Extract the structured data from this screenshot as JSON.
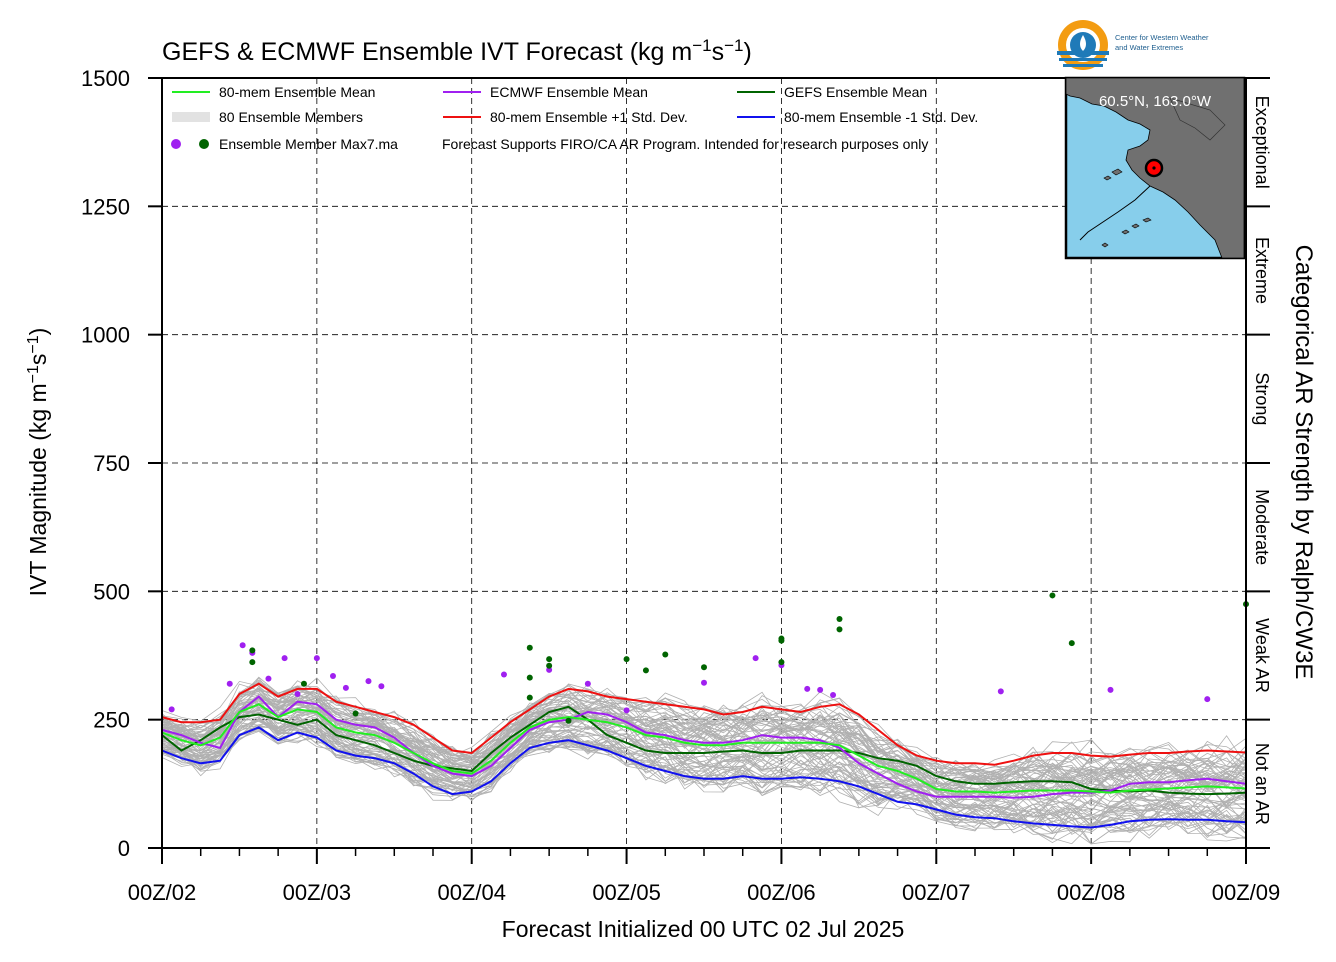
{
  "chart_data": {
    "type": "line",
    "title": "GEFS & ECMWF Ensemble IVT Forecast (kg m⁻¹s⁻¹)",
    "xlabel": "Forecast Initialized 00 UTC 02 Jul 2025",
    "ylabel": "IVT Magnitude (kg m⁻¹s⁻¹)",
    "right_label": "Categorical AR Strength by Ralph/CW3E",
    "ylim": [
      0,
      1500
    ],
    "xlim": [
      0,
      168
    ],
    "x_unit": "forecast hour",
    "x_ticks": [
      {
        "x": 0,
        "label": "00Z/02"
      },
      {
        "x": 24,
        "label": "00Z/03"
      },
      {
        "x": 48,
        "label": "00Z/04"
      },
      {
        "x": 72,
        "label": "00Z/05"
      },
      {
        "x": 96,
        "label": "00Z/06"
      },
      {
        "x": 120,
        "label": "00Z/07"
      },
      {
        "x": 144,
        "label": "00Z/08"
      },
      {
        "x": 168,
        "label": "00Z/09"
      }
    ],
    "y_ticks": [
      0,
      250,
      500,
      750,
      1000,
      1250,
      1500
    ],
    "grid": true,
    "categories": [
      {
        "label": "Not an AR",
        "range": [
          0,
          250
        ]
      },
      {
        "label": "Weak AR",
        "range": [
          250,
          500
        ]
      },
      {
        "label": "Moderate",
        "range": [
          500,
          750
        ]
      },
      {
        "label": "Strong",
        "range": [
          750,
          1000
        ]
      },
      {
        "label": "Extreme",
        "range": [
          1000,
          1250
        ]
      },
      {
        "label": "Exceptional",
        "range": [
          1250,
          1500
        ]
      }
    ],
    "legend": {
      "placement": "top-left",
      "items": [
        {
          "label": "80-mem Ensemble Mean",
          "color": "#22ee22"
        },
        {
          "label": "ECMWF Ensemble Mean",
          "color": "#a020f0"
        },
        {
          "label": "GEFS Ensemble Mean",
          "color": "#006400"
        },
        {
          "label": "80 Ensemble Members",
          "color": "#b0b0b0"
        },
        {
          "label": "80-mem Ensemble +1 Std. Dev.",
          "color": "#ee1111"
        },
        {
          "label": "80-mem Ensemble -1 Std. Dev.",
          "color": "#1111ee"
        },
        {
          "label": "Ensemble Member Max7.ma",
          "color": "#a020f0"
        }
      ],
      "note": "Forecast Supports FIRO/CA AR Program. Intended for research purposes only"
    },
    "x": [
      0,
      3,
      6,
      9,
      12,
      15,
      18,
      21,
      24,
      27,
      30,
      33,
      36,
      39,
      42,
      45,
      48,
      51,
      54,
      57,
      60,
      63,
      66,
      69,
      72,
      75,
      78,
      81,
      84,
      87,
      90,
      93,
      96,
      99,
      102,
      105,
      108,
      111,
      114,
      117,
      120,
      123,
      126,
      129,
      132,
      135,
      138,
      141,
      144,
      147,
      150,
      153,
      156,
      159,
      162,
      165,
      168
    ],
    "series": [
      {
        "name": "80-mem Ensemble Mean",
        "color": "#22ee22",
        "values": [
          225,
          210,
          200,
          215,
          265,
          280,
          255,
          270,
          265,
          235,
          225,
          220,
          205,
          185,
          165,
          150,
          145,
          170,
          205,
          235,
          250,
          255,
          250,
          245,
          235,
          220,
          215,
          205,
          200,
          200,
          205,
          205,
          205,
          205,
          205,
          200,
          180,
          160,
          150,
          135,
          115,
          110,
          110,
          108,
          110,
          112,
          112,
          112,
          110,
          108,
          112,
          114,
          116,
          118,
          120,
          118,
          116
        ]
      },
      {
        "name": "ECMWF Ensemble Mean",
        "color": "#a020f0",
        "values": [
          230,
          220,
          205,
          195,
          265,
          295,
          255,
          285,
          280,
          250,
          240,
          235,
          215,
          185,
          160,
          145,
          140,
          160,
          195,
          230,
          245,
          250,
          265,
          260,
          245,
          225,
          220,
          210,
          205,
          205,
          210,
          220,
          215,
          215,
          210,
          195,
          165,
          145,
          125,
          110,
          100,
          100,
          100,
          100,
          98,
          100,
          105,
          108,
          108,
          112,
          125,
          128,
          128,
          132,
          135,
          130,
          125
        ]
      },
      {
        "name": "GEFS Ensemble Mean",
        "color": "#006400",
        "values": [
          220,
          190,
          210,
          235,
          255,
          260,
          250,
          240,
          250,
          220,
          210,
          200,
          185,
          170,
          160,
          155,
          150,
          185,
          215,
          240,
          265,
          275,
          250,
          220,
          205,
          190,
          185,
          185,
          185,
          188,
          190,
          185,
          185,
          190,
          190,
          190,
          185,
          175,
          170,
          160,
          140,
          130,
          125,
          125,
          128,
          130,
          130,
          128,
          115,
          112,
          110,
          112,
          108,
          106,
          105,
          106,
          108
        ]
      },
      {
        "name": "80-mem Ensemble +1 Std. Dev.",
        "color": "#ee1111",
        "values": [
          255,
          245,
          245,
          250,
          300,
          320,
          295,
          310,
          310,
          285,
          275,
          265,
          255,
          240,
          215,
          190,
          185,
          215,
          245,
          270,
          295,
          310,
          305,
          295,
          290,
          285,
          280,
          275,
          270,
          260,
          265,
          275,
          270,
          265,
          275,
          280,
          260,
          230,
          200,
          180,
          170,
          165,
          165,
          162,
          170,
          180,
          185,
          185,
          180,
          178,
          182,
          185,
          185,
          188,
          190,
          188,
          186
        ]
      },
      {
        "name": "80-mem Ensemble -1 Std. Dev.",
        "color": "#1111ee",
        "values": [
          190,
          175,
          165,
          170,
          220,
          235,
          210,
          225,
          215,
          190,
          180,
          175,
          165,
          145,
          120,
          105,
          110,
          130,
          165,
          195,
          205,
          210,
          200,
          190,
          175,
          160,
          150,
          140,
          135,
          135,
          140,
          135,
          135,
          138,
          135,
          130,
          120,
          105,
          90,
          85,
          75,
          65,
          60,
          58,
          52,
          48,
          45,
          42,
          40,
          45,
          52,
          55,
          56,
          55,
          55,
          52,
          50
        ]
      }
    ],
    "member_max_points": {
      "ecmwf": {
        "color": "#a020f0",
        "points": [
          [
            1.5,
            270
          ],
          [
            10.5,
            320
          ],
          [
            12.5,
            395
          ],
          [
            14,
            380
          ],
          [
            16.5,
            330
          ],
          [
            19,
            370
          ],
          [
            21,
            300
          ],
          [
            24,
            370
          ],
          [
            26.5,
            335
          ],
          [
            28.5,
            312
          ],
          [
            32,
            325
          ],
          [
            34,
            315
          ],
          [
            53,
            338
          ],
          [
            60,
            347
          ],
          [
            66,
            320
          ],
          [
            72,
            268
          ],
          [
            84,
            322
          ],
          [
            92,
            370
          ],
          [
            96,
            356
          ],
          [
            100,
            310
          ],
          [
            102,
            308
          ],
          [
            104,
            298
          ],
          [
            130,
            305
          ],
          [
            147,
            308
          ],
          [
            162,
            290
          ]
        ]
      },
      "gefs": {
        "color": "#006400",
        "points": [
          [
            14,
            385
          ],
          [
            14,
            362
          ],
          [
            22,
            320
          ],
          [
            30,
            262
          ],
          [
            57,
            390
          ],
          [
            57,
            332
          ],
          [
            57,
            293
          ],
          [
            60,
            368
          ],
          [
            60,
            355
          ],
          [
            63,
            248
          ],
          [
            72,
            368
          ],
          [
            75,
            346
          ],
          [
            78,
            377
          ],
          [
            84,
            352
          ],
          [
            96,
            408
          ],
          [
            96,
            404
          ],
          [
            96,
            362
          ],
          [
            105,
            446
          ],
          [
            105,
            426
          ],
          [
            138,
            492
          ],
          [
            141,
            399
          ],
          [
            168,
            475
          ]
        ]
      }
    },
    "inset_map": {
      "label": "60.5°N, 163.0°W",
      "land_color": "#707070",
      "ocean_color": "#87ceeb",
      "marker_color": "#ff0000"
    },
    "logo_text": [
      "Center for Western Weather",
      "and Water Extremes"
    ]
  }
}
